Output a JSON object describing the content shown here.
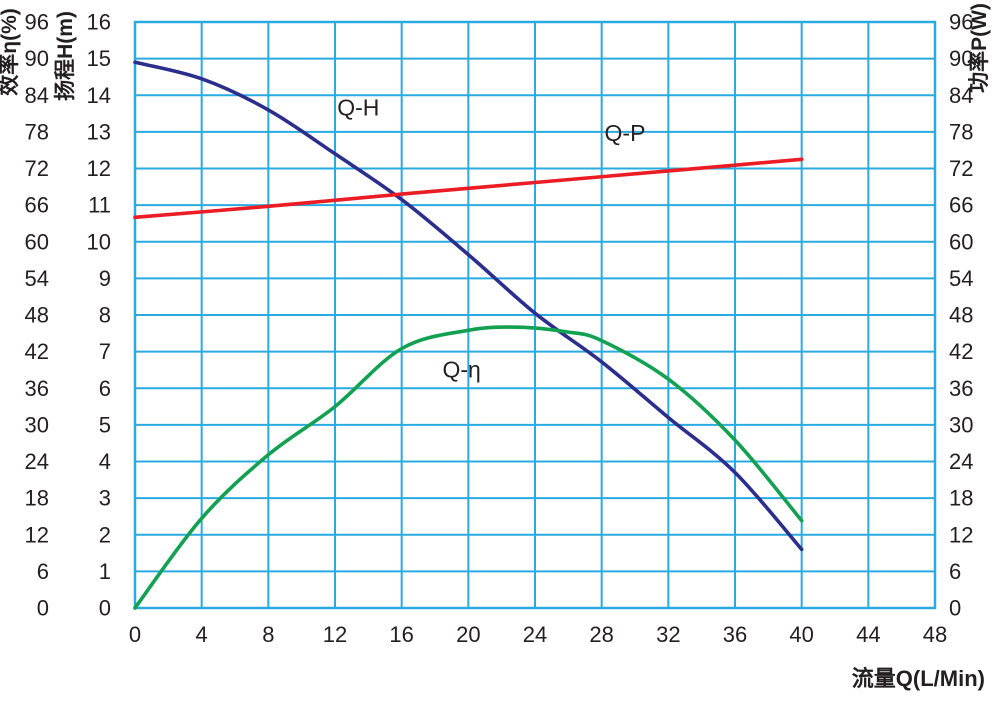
{
  "chart_data": {
    "type": "line",
    "title": "",
    "xlabel": "流量Q(L/Min)",
    "xlim": [
      0,
      48
    ],
    "x_ticks": [
      0,
      4,
      8,
      12,
      16,
      20,
      24,
      28,
      32,
      36,
      40,
      44,
      48
    ],
    "grid": true,
    "grid_color": "#29ABE2",
    "background_color": "#FFFFFF",
    "text_color": "#231F20",
    "axes": {
      "efficiency": {
        "title": "效率η(%)",
        "range": [
          0,
          96
        ],
        "ticks": [
          0,
          6,
          12,
          18,
          24,
          30,
          36,
          42,
          48,
          54,
          60,
          66,
          72,
          78,
          84,
          90,
          96
        ],
        "side": "outer-left"
      },
      "head": {
        "title": "扬程H(m)",
        "range": [
          0,
          16
        ],
        "ticks": [
          0,
          1,
          2,
          3,
          4,
          5,
          6,
          7,
          8,
          9,
          10,
          11,
          12,
          13,
          14,
          15,
          16
        ],
        "side": "inner-left"
      },
      "power": {
        "title": "功率P(W)",
        "range": [
          0,
          96
        ],
        "ticks": [
          0,
          6,
          12,
          18,
          24,
          30,
          36,
          42,
          48,
          54,
          60,
          66,
          72,
          78,
          84,
          90,
          96
        ],
        "side": "right"
      }
    },
    "series": [
      {
        "name": "Q-H",
        "label": "Q-H",
        "axis": "head",
        "color": "#2B2E8C",
        "label_pos": {
          "q": 13.4,
          "v": 13.45
        },
        "points": [
          [
            0,
            14.9
          ],
          [
            4,
            14.45
          ],
          [
            8,
            13.6
          ],
          [
            12,
            12.4
          ],
          [
            16,
            11.15
          ],
          [
            20,
            9.65
          ],
          [
            24,
            8.05
          ],
          [
            28,
            6.72
          ],
          [
            32,
            5.2
          ],
          [
            36,
            3.7
          ],
          [
            40,
            1.6
          ]
        ]
      },
      {
        "name": "Q-P",
        "label": "Q-P",
        "axis": "power",
        "color": "#EC1C24",
        "label_pos": {
          "q": 29.4,
          "v": 76.5
        },
        "points": [
          [
            0,
            64
          ],
          [
            8,
            65.8
          ],
          [
            16,
            67.8
          ],
          [
            24,
            69.7
          ],
          [
            32,
            71.6
          ],
          [
            40,
            73.5
          ]
        ]
      },
      {
        "name": "Q-η",
        "label": "Q-η",
        "axis": "efficiency",
        "color": "#12A151",
        "label_pos": {
          "q": 19.6,
          "v": 37.8
        },
        "points": [
          [
            0,
            0
          ],
          [
            4,
            14.7
          ],
          [
            8,
            25.1
          ],
          [
            12,
            33
          ],
          [
            16,
            42.5
          ],
          [
            20,
            45.5
          ],
          [
            23,
            46
          ],
          [
            26,
            45.2
          ],
          [
            28,
            43.8
          ],
          [
            32,
            37.5
          ],
          [
            36,
            27.5
          ],
          [
            40,
            14.3
          ]
        ]
      }
    ]
  }
}
